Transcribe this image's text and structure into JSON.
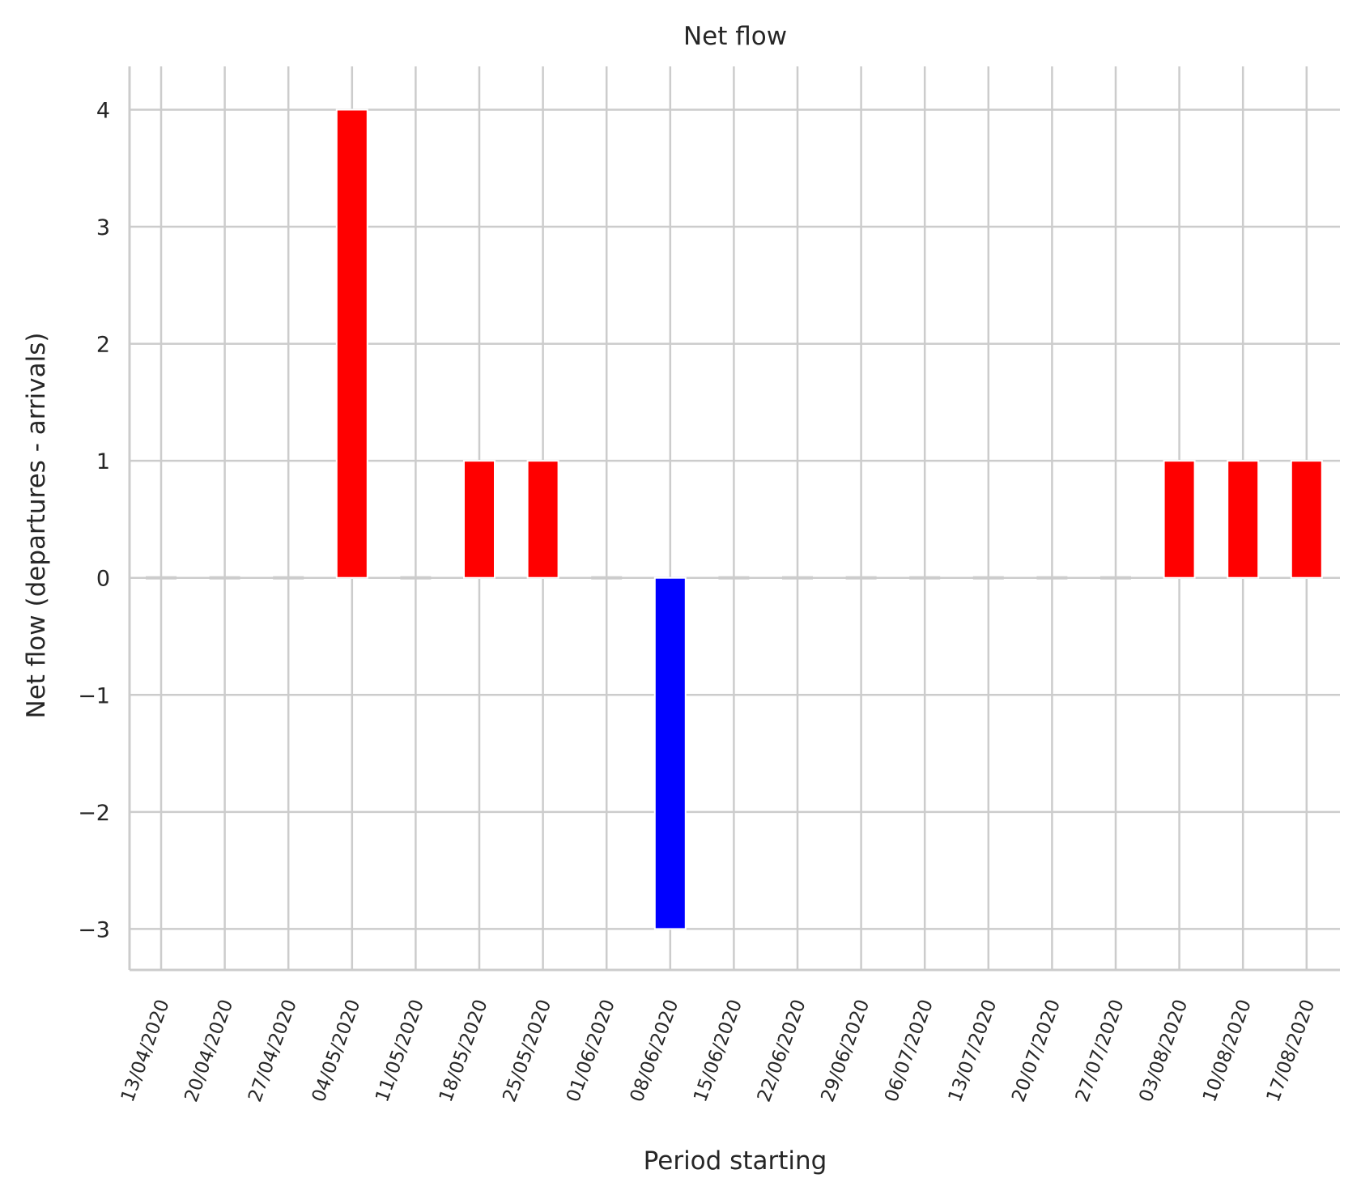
{
  "chart_data": {
    "type": "bar",
    "title": "Net flow",
    "xlabel": "Period starting",
    "ylabel": "Net flow (departures - arrivals)",
    "categories": [
      "13/04/2020",
      "20/04/2020",
      "27/04/2020",
      "04/05/2020",
      "11/05/2020",
      "18/05/2020",
      "25/05/2020",
      "01/06/2020",
      "08/06/2020",
      "15/06/2020",
      "22/06/2020",
      "29/06/2020",
      "06/07/2020",
      "13/07/2020",
      "20/07/2020",
      "27/07/2020",
      "03/08/2020",
      "10/08/2020",
      "17/08/2020"
    ],
    "values": [
      0,
      0,
      0,
      4,
      0,
      1,
      1,
      0,
      -3,
      0,
      0,
      0,
      0,
      0,
      0,
      0,
      1,
      1,
      1
    ],
    "ylim": [
      -3.35,
      4.37
    ],
    "yticks": [
      -3,
      -2,
      -1,
      0,
      1,
      2,
      3,
      4
    ],
    "ytick_labels": [
      "−3",
      "−2",
      "−1",
      "0",
      "1",
      "2",
      "3",
      "4"
    ],
    "grid": true,
    "colors": {
      "positive": "#ff0000",
      "negative": "#0000ff",
      "zero": "#cccccc",
      "grid": "#cccccc",
      "axis": "#cccccc",
      "text": "#262626"
    }
  }
}
